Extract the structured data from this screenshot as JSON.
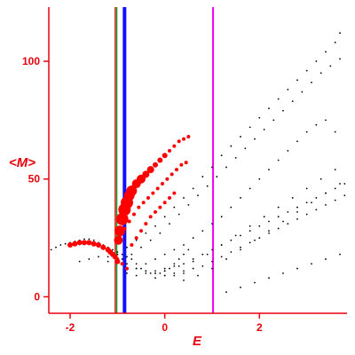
{
  "chart_data": {
    "type": "scatter",
    "title": "",
    "xlabel": "E",
    "ylabel": "<M>",
    "xlim": [
      -2.45,
      3.85
    ],
    "ylim": [
      -7,
      123
    ],
    "x_ticks": [
      -2,
      0,
      2
    ],
    "y_ticks": [
      0,
      50,
      100
    ],
    "grid": false,
    "colors": {
      "axes": "#e8000b",
      "tick_labels": "#e8000b",
      "background_points": "#000000",
      "highlight_points": "#ff0000",
      "line_green": "#2e8b2e",
      "line_blue": "#1010ff",
      "line_magenta": "#ee00ee"
    },
    "vertical_lines": [
      {
        "x": -1.05,
        "color": "#ff0000",
        "width": 1
      },
      {
        "x": -1.02,
        "color": "#2e8b2e",
        "width": 2
      },
      {
        "x": -0.85,
        "color": "#1010ff",
        "width": 4
      },
      {
        "x": 1.02,
        "color": "#ee00ee",
        "width": 2
      }
    ],
    "series": [
      {
        "kind": "background",
        "x": [
          -2.4,
          -2.3,
          -2.2,
          -2.1,
          -2.0,
          -1.9,
          -1.8,
          -1.7,
          -1.6,
          -1.5,
          -1.4,
          -1.3,
          -1.2,
          -1.1,
          -1.0,
          -0.9,
          -0.8,
          -0.7,
          -0.6,
          -0.5,
          -0.4,
          -0.3,
          -0.2,
          -0.1,
          0.0,
          0.1,
          0.2,
          0.3,
          0.4,
          0.5,
          -1.8,
          -1.6,
          -1.4,
          -1.2,
          -1.0,
          -0.8,
          -0.6,
          -0.4,
          -0.2,
          0.0,
          0.2,
          0.4,
          -1.2,
          -1.0,
          -0.8,
          -0.6,
          -0.4,
          -0.2,
          0.0,
          0.2,
          0.4,
          0.6,
          0.8,
          1.0,
          1.2,
          1.4,
          1.6,
          1.8,
          2.0,
          2.2,
          2.4,
          2.6,
          2.8,
          3.0,
          3.2,
          3.4,
          3.6,
          3.7,
          -0.9,
          -0.7,
          -0.5,
          -0.3,
          -0.1,
          0.1,
          0.3,
          0.5,
          0.7,
          0.9,
          1.1,
          1.3,
          1.5,
          1.7,
          1.9,
          2.1,
          2.3,
          2.5,
          2.7,
          2.9,
          3.1,
          3.3,
          3.5,
          3.7,
          -0.8,
          -0.6,
          -0.4,
          -0.2,
          0.0,
          0.2,
          0.4,
          0.6,
          0.8,
          1.0,
          1.2,
          1.4,
          1.6,
          1.8,
          2.0,
          2.2,
          2.4,
          2.6,
          2.8,
          3.0,
          3.2,
          3.4,
          3.6,
          -0.6,
          -0.4,
          -0.2,
          0.0,
          0.2,
          0.4,
          0.6,
          0.8,
          1.0,
          1.2,
          1.4,
          1.6,
          1.8,
          2.0,
          2.2,
          2.4,
          2.6,
          2.8,
          3.0,
          3.2,
          3.4,
          3.6,
          3.8,
          -0.2,
          0.0,
          0.2,
          0.4,
          0.6,
          0.8,
          1.0,
          1.2,
          1.4,
          1.6,
          1.8,
          2.0,
          2.2,
          2.4,
          2.6,
          2.8,
          3.0,
          3.2,
          3.4,
          3.6,
          3.8,
          0.0,
          0.3,
          0.6,
          0.9,
          1.2,
          1.5,
          1.8,
          2.1,
          2.4,
          2.7,
          3.0,
          3.3,
          3.6,
          0.4,
          0.7,
          1.0,
          1.3,
          1.6,
          1.9,
          2.2,
          2.5,
          2.8,
          3.1,
          3.4,
          3.7,
          1.3,
          1.6,
          1.9,
          2.2,
          2.5,
          2.8,
          3.1,
          3.4,
          3.7
        ],
        "y": [
          20,
          21,
          22,
          22.5,
          23,
          23.5,
          24,
          24.5,
          24.5,
          24,
          23,
          22,
          21,
          20,
          19,
          18,
          17,
          16,
          14,
          12,
          11,
          10,
          10,
          10,
          11,
          12,
          14,
          16,
          18,
          20,
          15,
          16,
          17,
          17,
          16,
          14,
          12,
          11,
          10,
          9,
          9,
          10,
          15,
          18,
          21,
          24,
          27,
          30,
          34,
          38,
          42,
          46,
          51,
          55,
          60,
          64,
          68,
          72,
          76,
          80,
          84,
          88,
          92,
          96,
          100,
          104,
          108,
          112,
          16,
          18,
          21,
          24,
          27,
          31,
          35,
          39,
          43,
          47,
          51,
          55,
          59,
          63,
          67,
          71,
          75,
          79,
          83,
          87,
          91,
          95,
          98,
          101,
          10,
          12,
          14,
          16,
          18,
          20,
          22,
          25,
          28,
          31,
          34,
          38,
          42,
          46,
          50,
          54,
          58,
          62,
          66,
          70,
          73,
          75,
          70,
          9,
          10,
          11,
          12,
          13,
          14,
          16,
          18,
          20,
          22,
          24,
          26,
          28,
          30,
          32,
          34,
          36,
          38,
          40,
          42,
          44,
          46,
          48,
          8,
          9,
          10,
          11,
          12,
          13,
          15,
          17,
          19,
          21,
          23,
          25,
          27,
          29,
          31,
          33,
          35,
          37,
          39,
          41,
          43,
          11,
          13,
          15,
          18,
          22,
          26,
          30,
          34,
          38,
          42,
          46,
          50,
          54,
          7,
          9,
          12,
          16,
          20,
          24,
          28,
          32,
          36,
          40,
          44,
          48,
          2,
          4,
          6,
          8,
          10,
          12,
          14,
          16,
          18
        ]
      },
      {
        "kind": "highlight",
        "x": [
          -2.0,
          -1.9,
          -1.8,
          -1.7,
          -1.6,
          -1.5,
          -1.4,
          -1.3,
          -1.2,
          -1.15,
          -1.1,
          -1.05,
          -1.0,
          -0.98,
          -0.95,
          -0.9,
          -0.85,
          -0.8,
          -0.75,
          -0.7,
          -0.6,
          -0.5,
          -0.4,
          -0.3,
          -0.2,
          -0.1,
          0.0,
          0.1,
          0.2,
          0.3,
          0.4,
          0.5,
          -0.95,
          -0.85,
          -0.75,
          -0.65,
          -0.55,
          -0.45,
          -0.35,
          -0.25,
          -0.15,
          -0.05,
          0.05,
          0.15,
          0.25,
          0.35,
          0.45,
          -0.7,
          -0.6,
          -0.5,
          -0.4,
          -0.3,
          -0.2,
          -0.1,
          0.0,
          0.1,
          0.2,
          -1.2,
          -1.1,
          -1.0,
          -0.9,
          -0.8
        ],
        "y": [
          22,
          22.5,
          23,
          23,
          23,
          22.5,
          22,
          21,
          20,
          19,
          18,
          17,
          15,
          24,
          28,
          33,
          37,
          40,
          43,
          45,
          48,
          50,
          52,
          54,
          56,
          58,
          60,
          62,
          64,
          66,
          67,
          68,
          26,
          29,
          32,
          35,
          38,
          40,
          42,
          44,
          46,
          48,
          50,
          52,
          54,
          56,
          57,
          22,
          25,
          28,
          31,
          34,
          36,
          38,
          40,
          42,
          44,
          20,
          18,
          16,
          14,
          12
        ],
        "sizes": [
          3,
          3,
          3,
          3,
          3,
          3,
          3,
          3,
          3,
          3,
          3,
          3,
          3,
          5,
          6,
          7,
          7,
          7,
          6,
          6,
          5,
          5,
          4,
          4,
          3,
          3,
          3,
          2,
          2,
          2,
          2,
          2,
          2,
          2,
          2,
          2,
          2,
          2,
          2,
          2,
          2,
          2,
          2,
          2,
          2,
          2,
          2,
          2,
          2,
          2,
          2,
          2,
          2,
          2,
          2,
          2,
          2,
          2,
          2,
          2,
          2,
          2
        ]
      }
    ]
  }
}
